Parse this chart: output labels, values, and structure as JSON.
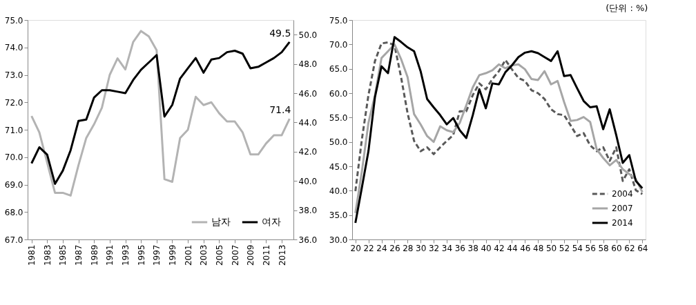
{
  "chart_data": [
    {
      "type": "line",
      "x": [
        1981,
        1982,
        1983,
        1984,
        1985,
        1986,
        1987,
        1988,
        1989,
        1990,
        1991,
        1992,
        1993,
        1994,
        1995,
        1996,
        1997,
        1998,
        1999,
        2000,
        2001,
        2002,
        2003,
        2004,
        2005,
        2006,
        2007,
        2008,
        2009,
        2010,
        2011,
        2012,
        2013,
        2014
      ],
      "xlim": [
        1980.5,
        2014.5
      ],
      "xticks": [
        1981,
        1983,
        1985,
        1987,
        1989,
        1991,
        1993,
        1995,
        1997,
        1999,
        2001,
        2003,
        2005,
        2007,
        2009,
        2011,
        2013
      ],
      "ylim": [
        67,
        75
      ],
      "yticks": [
        {
          "value": 67,
          "label": "67.0"
        },
        {
          "value": 68,
          "label": "68.0"
        },
        {
          "value": 69,
          "label": "69.0"
        },
        {
          "value": 70,
          "label": "70.0"
        },
        {
          "value": 71,
          "label": "71.0"
        },
        {
          "value": 72,
          "label": "72.0"
        },
        {
          "value": 73,
          "label": "73.0"
        },
        {
          "value": 74,
          "label": "74.0"
        },
        {
          "value": 75,
          "label": "75.0"
        }
      ],
      "y2lim": [
        36,
        51
      ],
      "y2ticks": [
        {
          "value": 36,
          "label": "36.0"
        },
        {
          "value": 38,
          "label": "38.0"
        },
        {
          "value": 40,
          "label": "40.0"
        },
        {
          "value": 42,
          "label": "42.0"
        },
        {
          "value": 44,
          "label": "44.0"
        },
        {
          "value": 46,
          "label": "46.0"
        },
        {
          "value": 48,
          "label": "48.0"
        },
        {
          "value": 50,
          "label": "50.0"
        }
      ],
      "legend": "bottom right",
      "grid": false,
      "marker": "none",
      "series": [
        {
          "name": "남자",
          "color": "#b3b3b3",
          "line_style": "solid",
          "values": [
            71.5,
            70.9,
            69.8,
            68.7,
            68.7,
            68.6,
            69.7,
            70.7,
            71.2,
            71.8,
            73.0,
            73.6,
            73.2,
            74.2,
            74.6,
            74.4,
            73.9,
            69.2,
            69.1,
            70.7,
            71.0,
            72.2,
            71.9,
            72.0,
            71.6,
            71.3,
            71.3,
            70.9,
            70.1,
            70.1,
            70.5,
            70.8,
            70.8,
            71.4
          ],
          "value_labels": [
            null,
            null,
            null,
            null,
            null,
            null,
            null,
            null,
            null,
            null,
            null,
            null,
            null,
            null,
            null,
            null,
            null,
            null,
            null,
            null,
            null,
            null,
            null,
            null,
            null,
            null,
            null,
            null,
            null,
            null,
            null,
            null,
            null,
            "71.4"
          ]
        },
        {
          "name": "여자",
          "color": "#000000",
          "line_style": "solid",
          "axis": "y2",
          "values": [
            41.2,
            42.3,
            41.8,
            39.8,
            40.7,
            42.1,
            44.1,
            44.2,
            45.7,
            46.2,
            46.2,
            46.1,
            46.0,
            46.9,
            47.6,
            48.1,
            48.6,
            44.4,
            45.2,
            47.0,
            47.7,
            48.4,
            47.4,
            48.3,
            48.4,
            48.8,
            48.9,
            48.7,
            47.7,
            47.8,
            48.1,
            48.4,
            48.8,
            49.5
          ],
          "value_labels": [
            null,
            null,
            null,
            null,
            null,
            null,
            null,
            null,
            null,
            null,
            null,
            null,
            null,
            null,
            null,
            null,
            null,
            null,
            null,
            null,
            null,
            null,
            null,
            null,
            null,
            null,
            null,
            null,
            null,
            null,
            null,
            null,
            null,
            "49.5"
          ]
        }
      ]
    },
    {
      "type": "line",
      "x": [
        20,
        21,
        22,
        23,
        24,
        25,
        26,
        27,
        28,
        29,
        30,
        31,
        32,
        33,
        34,
        35,
        36,
        37,
        38,
        39,
        40,
        41,
        42,
        43,
        44,
        45,
        46,
        47,
        48,
        49,
        50,
        51,
        52,
        53,
        54,
        55,
        56,
        57,
        58,
        59,
        60,
        61,
        62,
        63,
        64
      ],
      "xlim": [
        19.5,
        64.5
      ],
      "xticks": [
        20,
        22,
        24,
        26,
        28,
        30,
        32,
        34,
        36,
        38,
        40,
        42,
        44,
        46,
        48,
        50,
        52,
        54,
        56,
        58,
        60,
        62,
        64
      ],
      "ylim": [
        30,
        75
      ],
      "yticks": [
        {
          "value": 30,
          "label": "30.0"
        },
        {
          "value": 35,
          "label": "35.0"
        },
        {
          "value": 40,
          "label": "40.0"
        },
        {
          "value": 45,
          "label": "45.0"
        },
        {
          "value": 50,
          "label": "50.0"
        },
        {
          "value": 55,
          "label": "55.0"
        },
        {
          "value": 60,
          "label": "60.0"
        },
        {
          "value": 65,
          "label": "65.0"
        },
        {
          "value": 70,
          "label": "70.0"
        },
        {
          "value": 75,
          "label": "75.0"
        }
      ],
      "legend": "bottom right",
      "grid": false,
      "marker": "none",
      "annotations": [
        "(단위 : %)"
      ],
      "series": [
        {
          "name": "2004",
          "color": "#595959",
          "line_style": "dashed",
          "values": [
            39.9,
            50.6,
            59.6,
            66.6,
            70.2,
            70.4,
            69.8,
            63.3,
            55.9,
            50.2,
            48.1,
            48.9,
            47.5,
            48.9,
            50.2,
            51.4,
            56.3,
            56.3,
            59.6,
            62.0,
            60.8,
            62.9,
            64.5,
            66.8,
            64.9,
            63.1,
            62.5,
            60.6,
            60.0,
            58.8,
            56.7,
            55.7,
            55.5,
            53.4,
            51.2,
            51.8,
            49.3,
            48.1,
            48.9,
            46.1,
            48.9,
            42.0,
            44.4,
            40.1,
            39.3
          ]
        },
        {
          "name": "2007",
          "color": "#a6a6a6",
          "line_style": "solid",
          "values": [
            35.4,
            44.0,
            53.9,
            59.6,
            67.2,
            68.6,
            70.0,
            67.0,
            63.3,
            55.7,
            53.6,
            51.2,
            50.0,
            53.2,
            52.4,
            52.0,
            53.9,
            57.5,
            61.2,
            63.7,
            64.1,
            64.7,
            65.9,
            65.1,
            65.7,
            65.9,
            64.9,
            62.9,
            62.7,
            64.5,
            61.8,
            62.5,
            58.2,
            54.3,
            54.5,
            55.1,
            54.1,
            48.5,
            46.7,
            45.2,
            46.3,
            44.4,
            43.4,
            42.4,
            39.7
          ]
        },
        {
          "name": "2014",
          "color": "#000000",
          "line_style": "solid",
          "values": [
            33.4,
            40.7,
            48.1,
            59.2,
            65.5,
            64.1,
            71.5,
            70.5,
            69.4,
            68.6,
            64.5,
            58.8,
            57.1,
            55.5,
            53.6,
            54.9,
            52.4,
            50.8,
            55.5,
            60.8,
            56.9,
            62.0,
            61.8,
            64.3,
            65.7,
            67.4,
            68.3,
            68.6,
            68.2,
            67.4,
            66.6,
            68.6,
            63.5,
            63.7,
            61.0,
            58.4,
            57.1,
            57.3,
            52.6,
            56.7,
            51.4,
            45.7,
            47.3,
            42.0,
            40.5
          ]
        }
      ]
    }
  ]
}
